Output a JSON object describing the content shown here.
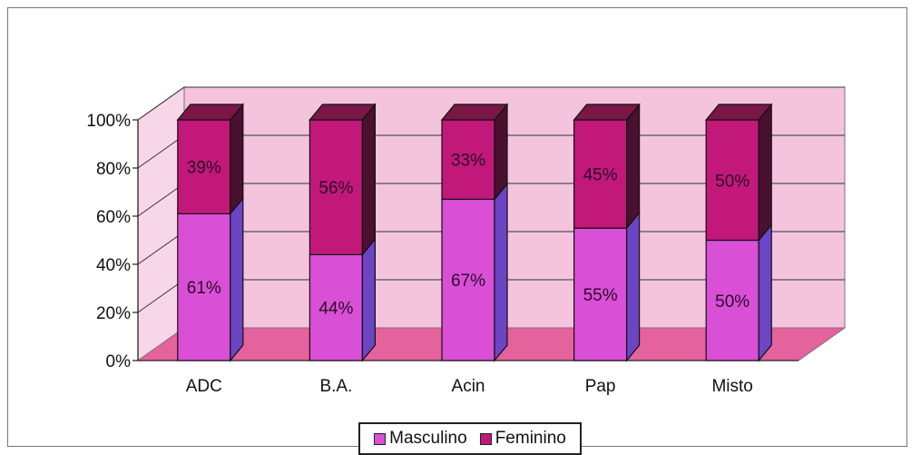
{
  "chart_data": {
    "type": "bar",
    "stacked": true,
    "three_d": true,
    "categories": [
      "ADC",
      "B.A.",
      "Acin",
      "Pap",
      "Misto"
    ],
    "series": [
      {
        "name": "Masculino",
        "values": [
          61,
          44,
          67,
          55,
          50
        ],
        "labels": [
          "61%",
          "44%",
          "67%",
          "55%",
          "50%"
        ],
        "color": "#d94fd6"
      },
      {
        "name": "Feminino",
        "values": [
          39,
          56,
          33,
          45,
          50
        ],
        "labels": [
          "39%",
          "56%",
          "33%",
          "45%",
          "50%"
        ],
        "color": "#c2187a"
      }
    ],
    "y_ticks": [
      "0%",
      "20%",
      "40%",
      "60%",
      "80%",
      "100%"
    ],
    "ylim": [
      0,
      100
    ],
    "grid": true,
    "legend_position": "bottom",
    "colors": {
      "wall": "#f3c4dc",
      "floor": "#e4639d",
      "masculino_front": "#d94fd6",
      "masculino_side": "#6b45c4",
      "feminino_front": "#c2187a",
      "feminino_side": "#4a1030"
    }
  }
}
